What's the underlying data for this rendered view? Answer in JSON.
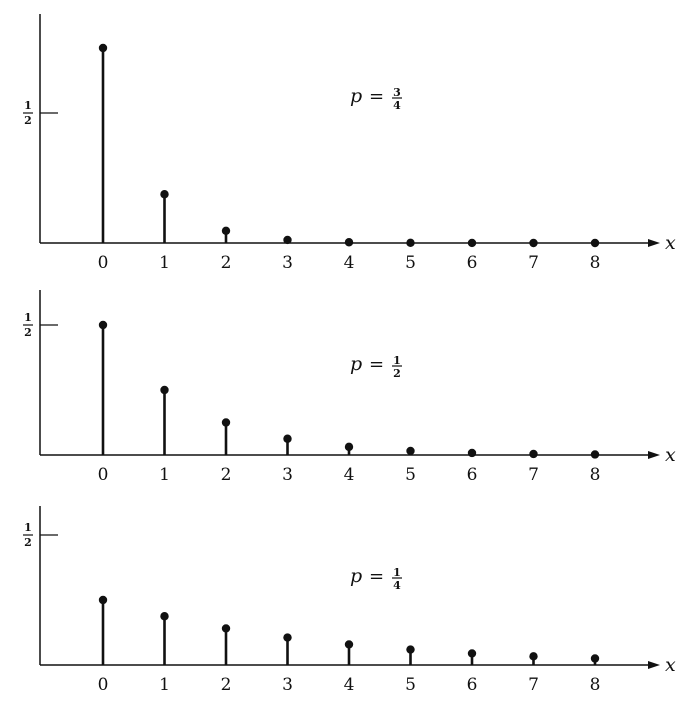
{
  "chart_data": [
    {
      "type": "bar",
      "label": {
        "var": "p",
        "eq": "=",
        "num": "3",
        "den": "4"
      },
      "ytick": {
        "num": "1",
        "den": "2",
        "value": 0.5
      },
      "x_axis_label": "x",
      "ylim": [
        0,
        0.75
      ],
      "categories": [
        "0",
        "1",
        "2",
        "3",
        "4",
        "5",
        "6",
        "7",
        "8"
      ],
      "values": [
        0.75,
        0.1875,
        0.0469,
        0.0117,
        0.0029,
        0.0007,
        0.0002,
        0.0,
        0.0
      ]
    },
    {
      "type": "bar",
      "label": {
        "var": "p",
        "eq": "=",
        "num": "1",
        "den": "2"
      },
      "ytick": {
        "num": "1",
        "den": "2",
        "value": 0.5
      },
      "x_axis_label": "x",
      "ylim": [
        0,
        0.5
      ],
      "categories": [
        "0",
        "1",
        "2",
        "3",
        "4",
        "5",
        "6",
        "7",
        "8"
      ],
      "values": [
        0.5,
        0.25,
        0.125,
        0.0625,
        0.0313,
        0.0156,
        0.0078,
        0.0039,
        0.002
      ]
    },
    {
      "type": "bar",
      "label": {
        "var": "p",
        "eq": "=",
        "num": "1",
        "den": "4"
      },
      "ytick": {
        "num": "1",
        "den": "2",
        "value": 0.5
      },
      "x_axis_label": "x",
      "ylim": [
        0,
        0.5
      ],
      "categories": [
        "0",
        "1",
        "2",
        "3",
        "4",
        "5",
        "6",
        "7",
        "8"
      ],
      "values": [
        0.25,
        0.1875,
        0.1406,
        0.1055,
        0.0791,
        0.0593,
        0.0445,
        0.0334,
        0.025
      ]
    }
  ]
}
